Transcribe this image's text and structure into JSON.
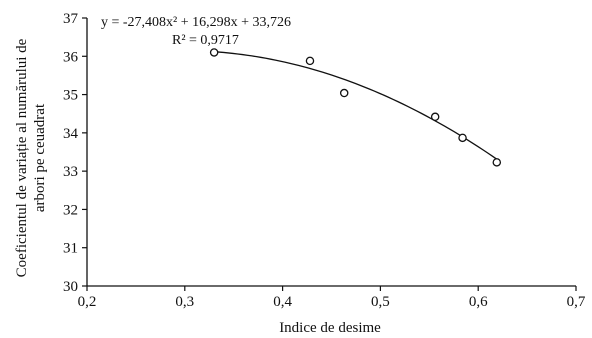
{
  "chart_data": {
    "type": "scatter",
    "xlabel": "Indice de desime",
    "ylabel_lines": [
      "Coeficientul de variație al numărului de",
      "arbori pe ceuadrat"
    ],
    "xlim": [
      0.2,
      0.7
    ],
    "ylim": [
      30,
      37
    ],
    "x_ticks": [
      0.2,
      0.3,
      0.4,
      0.5,
      0.6,
      0.7
    ],
    "x_tick_labels": [
      "0,2",
      "0,3",
      "0,4",
      "0,5",
      "0,6",
      "0,7"
    ],
    "y_ticks": [
      30,
      31,
      32,
      33,
      34,
      35,
      36,
      37
    ],
    "y_tick_labels": [
      "30",
      "31",
      "32",
      "33",
      "34",
      "35",
      "36",
      "37"
    ],
    "grid": false,
    "points": [
      {
        "x": 0.33,
        "y": 36.1
      },
      {
        "x": 0.428,
        "y": 35.88
      },
      {
        "x": 0.463,
        "y": 35.04
      },
      {
        "x": 0.556,
        "y": 34.42
      },
      {
        "x": 0.584,
        "y": 33.87
      },
      {
        "x": 0.619,
        "y": 33.23
      }
    ],
    "trendline": {
      "type": "polynomial",
      "coefficients": [
        -27.408,
        16.298,
        33.726
      ],
      "x_range": [
        0.33,
        0.619
      ],
      "equation": "y = -27,408x² + 16,298x + 33,726",
      "r_squared": "R² = 0,9717"
    }
  }
}
